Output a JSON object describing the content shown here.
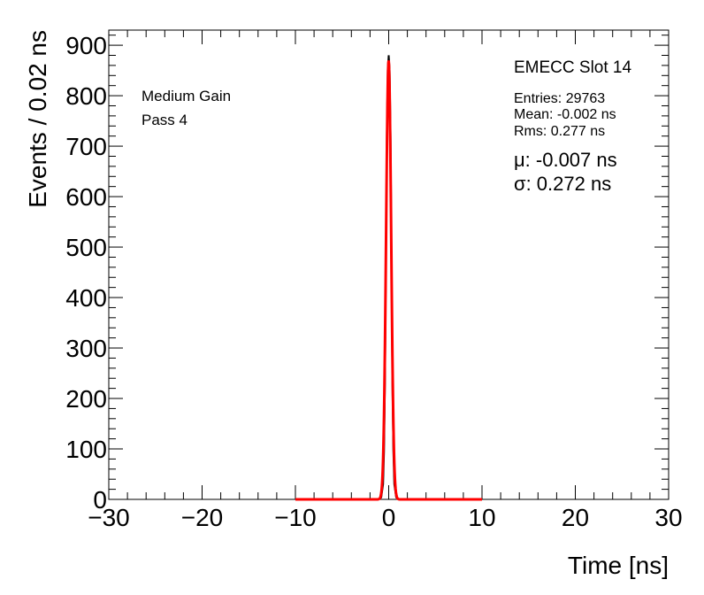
{
  "chart_data": {
    "type": "line",
    "xlabel": "Time [ns]",
    "ylabel": "Events / 0.02 ns",
    "xlim": [
      -30,
      30
    ],
    "ylim": [
      0,
      930
    ],
    "x_ticks": [
      -30,
      -20,
      -10,
      0,
      10,
      20,
      30
    ],
    "x_tick_labels": [
      "−30",
      "−20",
      "−10",
      "0",
      "10",
      "20",
      "30"
    ],
    "y_ticks": [
      0,
      100,
      200,
      300,
      400,
      500,
      600,
      700,
      800,
      900
    ],
    "y_tick_labels": [
      "0",
      "100",
      "200",
      "300",
      "400",
      "500",
      "600",
      "700",
      "800",
      "900"
    ],
    "grid": false,
    "series": [
      {
        "kind": "histogram",
        "color": "#000000",
        "x": [
          -1.0,
          -0.8,
          -0.6,
          -0.5,
          -0.4,
          -0.3,
          -0.2,
          -0.1,
          0.0,
          0.1,
          0.2,
          0.3,
          0.4,
          0.5,
          0.6,
          0.8,
          1.0
        ],
        "values": [
          0,
          4,
          30,
          95,
          230,
          470,
          720,
          850,
          880,
          850,
          720,
          470,
          230,
          95,
          30,
          4,
          0
        ]
      },
      {
        "kind": "fit",
        "color": "#ff0000",
        "x_range": [
          -10,
          10
        ],
        "mu": -0.007,
        "sigma": 0.272,
        "amplitude": 870
      }
    ],
    "annotations": {
      "left_lines": [
        "Medium Gain",
        "Pass 4"
      ],
      "slot_title": "EMECC Slot 14",
      "stats": [
        "Entries: 29763",
        "Mean: -0.002 ns",
        "Rms: 0.277 ns"
      ],
      "fit_lines": [
        "μ: -0.007 ns",
        "σ: 0.272 ns"
      ]
    }
  },
  "colors": {
    "histogram": "#000000",
    "fit": "#ff0000",
    "frame": "#000000"
  }
}
